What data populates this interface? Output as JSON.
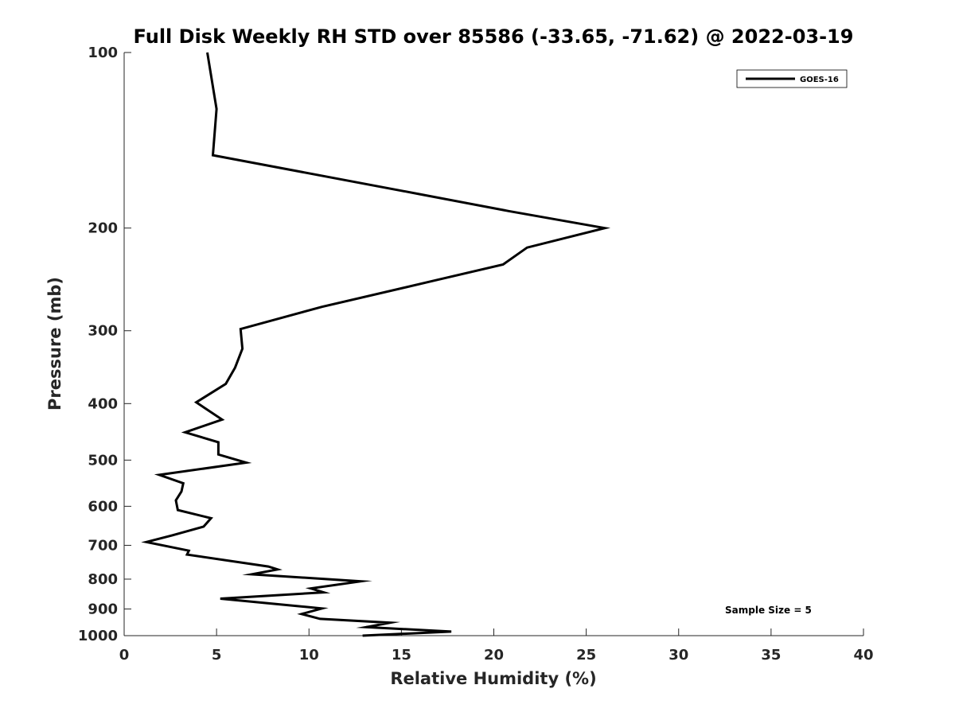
{
  "chart_data": {
    "type": "line",
    "title": "Full Disk Weekly RH STD over 85586 (-33.65, -71.62) @ 2022-03-19",
    "xlabel": "Relative Humidity (%)",
    "ylabel": "Pressure (mb)",
    "xlim": [
      0,
      40
    ],
    "ylim": [
      100,
      1000
    ],
    "y_scale": "log",
    "y_reversed": true,
    "xticks": [
      0,
      5,
      10,
      15,
      20,
      25,
      30,
      35,
      40
    ],
    "yticks": [
      100,
      200,
      300,
      400,
      500,
      600,
      700,
      800,
      900,
      1000
    ],
    "grid": false,
    "legend_position": "top-right",
    "annotation": "Sample Size = 5",
    "series": [
      {
        "name": "GOES-16",
        "color": "#000000",
        "points": [
          [
            4.5,
            100
          ],
          [
            5.0,
            125
          ],
          [
            4.8,
            150
          ],
          [
            16.0,
            175
          ],
          [
            20.8,
            187
          ],
          [
            26.0,
            200
          ],
          [
            21.8,
            216
          ],
          [
            20.5,
            231
          ],
          [
            16.8,
            246
          ],
          [
            10.7,
            273
          ],
          [
            6.3,
            298
          ],
          [
            6.4,
            322
          ],
          [
            6.0,
            347
          ],
          [
            5.5,
            370
          ],
          [
            3.9,
            398
          ],
          [
            5.3,
            426
          ],
          [
            3.3,
            448
          ],
          [
            5.1,
            466
          ],
          [
            5.1,
            489
          ],
          [
            6.6,
            505
          ],
          [
            1.9,
            530
          ],
          [
            3.2,
            548
          ],
          [
            3.1,
            566
          ],
          [
            2.8,
            586
          ],
          [
            2.9,
            609
          ],
          [
            4.7,
            629
          ],
          [
            4.3,
            650
          ],
          [
            2.6,
            673
          ],
          [
            1.2,
            691
          ],
          [
            3.5,
            715
          ],
          [
            3.4,
            726
          ],
          [
            7.8,
            761
          ],
          [
            8.3,
            770
          ],
          [
            6.9,
            785
          ],
          [
            12.8,
            807
          ],
          [
            10.1,
            830
          ],
          [
            10.8,
            843
          ],
          [
            5.2,
            864
          ],
          [
            10.7,
            898
          ],
          [
            9.6,
            918
          ],
          [
            10.6,
            936
          ],
          [
            14.4,
            950
          ],
          [
            13.1,
            967
          ],
          [
            17.7,
            984
          ],
          [
            12.9,
            1000
          ]
        ]
      }
    ]
  }
}
